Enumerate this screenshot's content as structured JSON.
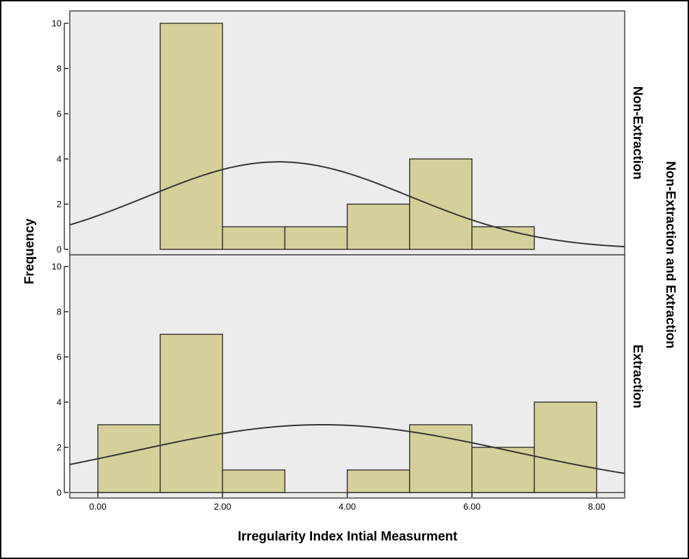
{
  "chart_data": {
    "type": "bar",
    "subtype": "histogram",
    "xlabel": "Irregularity Index Intial Measurment",
    "ylabel": "Frequency",
    "row_facet_label": "Non-Extraction and Extraction",
    "xlim": [
      -0.45,
      8.45
    ],
    "ylim": [
      0,
      10.5
    ],
    "x_ticks": [
      0,
      2,
      4,
      6,
      8
    ],
    "x_tick_labels": [
      "0.00",
      "2.00",
      "4.00",
      "6.00",
      "8.00"
    ],
    "y_ticks": [
      0,
      2,
      4,
      6,
      8,
      10
    ],
    "y_tick_labels": [
      "0",
      "2",
      "4",
      "6",
      "8",
      "10"
    ],
    "bin_width": 1,
    "bar_color": "#d5cf9a",
    "panel_background": "#ececec",
    "curve_color": "#333333",
    "grid": false,
    "panels": [
      {
        "name": "Non-Extraction",
        "bins": [
          {
            "x0": 1,
            "x1": 2,
            "count": 10
          },
          {
            "x0": 2,
            "x1": 3,
            "count": 1
          },
          {
            "x0": 3,
            "x1": 4,
            "count": 1
          },
          {
            "x0": 4,
            "x1": 5,
            "count": 2
          },
          {
            "x0": 5,
            "x1": 6,
            "count": 4
          },
          {
            "x0": 6,
            "x1": 7,
            "count": 1
          }
        ],
        "normal_curve": {
          "mean": 2.9,
          "peak": 3.87,
          "sd": 2.1
        }
      },
      {
        "name": "Extraction",
        "bins": [
          {
            "x0": 0,
            "x1": 1,
            "count": 3
          },
          {
            "x0": 1,
            "x1": 2,
            "count": 7
          },
          {
            "x0": 2,
            "x1": 3,
            "count": 1
          },
          {
            "x0": 4,
            "x1": 5,
            "count": 1
          },
          {
            "x0": 5,
            "x1": 6,
            "count": 3
          },
          {
            "x0": 6,
            "x1": 7,
            "count": 2
          },
          {
            "x0": 7,
            "x1": 8,
            "count": 4
          }
        ],
        "normal_curve": {
          "mean": 3.6,
          "peak": 3.0,
          "sd": 3.05
        }
      }
    ]
  }
}
